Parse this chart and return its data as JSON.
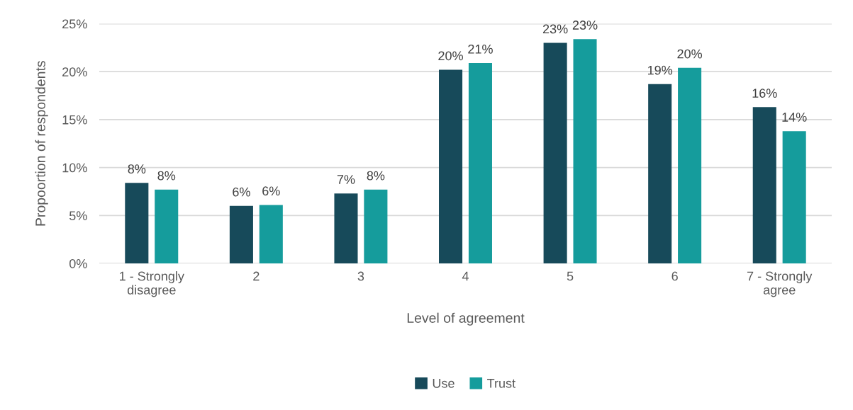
{
  "chart_data": {
    "type": "bar",
    "xlabel": "Level of agreement",
    "ylabel": "Propoortion of respondents",
    "categories": [
      "1 - Strongly\ndisagree",
      "2",
      "3",
      "4",
      "5",
      "6",
      "7 - Strongly\nagree"
    ],
    "series": [
      {
        "name": "Use",
        "color": "#174a5a",
        "values": [
          8.4,
          6.0,
          7.3,
          20.2,
          23.0,
          18.7,
          16.3
        ],
        "value_labels": [
          "8%",
          "6%",
          "7%",
          "20%",
          "23%",
          "19%",
          "16%"
        ]
      },
      {
        "name": "Trust",
        "color": "#159c9c",
        "values": [
          7.7,
          6.1,
          7.7,
          20.9,
          23.4,
          20.4,
          13.8
        ],
        "value_labels": [
          "8%",
          "6%",
          "8%",
          "21%",
          "23%",
          "20%",
          "14%"
        ]
      }
    ],
    "ylim": [
      0,
      25
    ],
    "yticks": [
      {
        "value": 0,
        "label": "0%"
      },
      {
        "value": 5,
        "label": "5%"
      },
      {
        "value": 10,
        "label": "10%"
      },
      {
        "value": 15,
        "label": "15%"
      },
      {
        "value": 20,
        "label": "20%"
      },
      {
        "value": 25,
        "label": "25%"
      }
    ],
    "grid": "y",
    "legend": "bottom"
  }
}
